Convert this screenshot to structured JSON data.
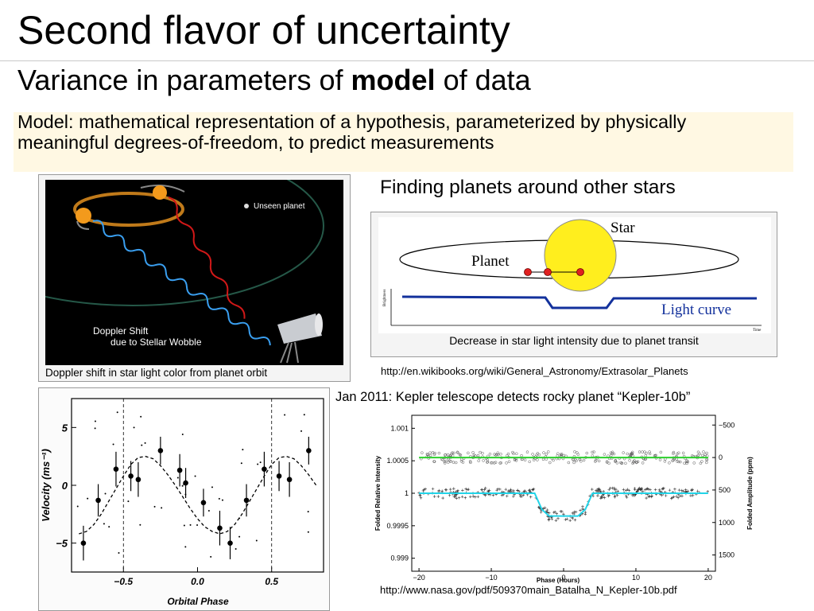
{
  "slide": {
    "title": "Second flavor of uncertainty",
    "subtitle": {
      "before": "Variance in parameters of ",
      "bold": "model",
      "after": " of data"
    },
    "definition": "Model: mathematical representation of a hypothesis, parameterized by physically meaningful degrees-of-freedom, to predict measurements"
  },
  "doppler_figure": {
    "unseen_planet_label": "Unseen planet",
    "doppler_line1": "Doppler Shift",
    "doppler_line2": "due to Stellar Wobble",
    "caption": "Doppler shift in star light color from planet orbit"
  },
  "transit_figure": {
    "heading": "Finding planets around other stars",
    "star_label": "Star",
    "planet_label": "Planet",
    "light_curve_label": "Light curve",
    "y_axis_label": "Brightness",
    "x_axis_label": "Time",
    "caption": "Decrease in star light intensity due to planet transit",
    "source_url": "http://en.wikibooks.org/wiki/General_Astronomy/Extrasolar_Planets"
  },
  "kepler_figure": {
    "heading": "Jan 2011: Kepler telescope detects rocky planet “Kepler-10b”",
    "source_url": "http://www.nasa.gov/pdf/509370main_Batalha_N_Kepler-10b.pdf"
  },
  "chart_data": [
    {
      "type": "scatter",
      "xlabel": "Orbital Phase",
      "ylabel": "Velocity (ms⁻¹)",
      "xlim": [
        -0.85,
        0.85
      ],
      "ylim": [
        -7.5,
        7.5
      ],
      "x_ticks": [
        "−0.5",
        "0.0",
        "0.5"
      ],
      "y_ticks": [
        "5",
        "0",
        "−5"
      ],
      "reference_lines_x": [
        -0.5,
        0.5
      ],
      "series": [
        {
          "marker": "dot-with-errorbar",
          "x": [
            -0.77,
            -0.67,
            -0.55,
            -0.45,
            -0.4,
            -0.25,
            -0.12,
            -0.08,
            0.04,
            0.15,
            0.22,
            0.33,
            0.45,
            0.55,
            0.62,
            0.75
          ],
          "y": [
            -5.0,
            -1.3,
            1.4,
            0.8,
            0.5,
            3.0,
            1.3,
            0.2,
            -1.5,
            -3.7,
            -5.0,
            -1.3,
            1.4,
            0.8,
            0.5,
            3.0
          ],
          "err": [
            1.5,
            1.4,
            1.5,
            1.3,
            1.5,
            1.2,
            1.4,
            1.3,
            1.2,
            1.5,
            1.4,
            1.4,
            1.5,
            1.3,
            1.5,
            1.2
          ]
        },
        {
          "marker": "dashed-line",
          "x": [
            -0.8,
            -0.75,
            -0.7,
            -0.65,
            -0.6,
            -0.55,
            -0.5,
            -0.45,
            -0.4,
            -0.35,
            -0.3,
            -0.25,
            -0.2,
            -0.15,
            -0.1,
            -0.05,
            0.0,
            0.05,
            0.1,
            0.15,
            0.2,
            0.25,
            0.3,
            0.35,
            0.4,
            0.45,
            0.5,
            0.55,
            0.6,
            0.65,
            0.7,
            0.75,
            0.8
          ],
          "y": [
            -4.2,
            -4.0,
            -3.4,
            -2.5,
            -1.4,
            -0.3,
            0.8,
            1.8,
            2.4,
            2.5,
            2.3,
            1.7,
            0.9,
            0.0,
            -1.0,
            -2.0,
            -2.9,
            -3.6,
            -4.0,
            -4.2,
            -4.0,
            -3.4,
            -2.5,
            -1.4,
            -0.3,
            0.8,
            1.8,
            2.4,
            2.5,
            2.3,
            1.7,
            0.9,
            0.0
          ]
        }
      ]
    },
    {
      "type": "scatter",
      "xlabel": "Phase (Hours)",
      "ylabel": "Folded Relative Intensity",
      "ylabel_right": "Folded Amplitude (ppm)",
      "xlim": [
        -21,
        21
      ],
      "ylim": [
        0.9988,
        1.0012
      ],
      "x_ticks": [
        "−20",
        "−10",
        "0",
        "10",
        "20"
      ],
      "y_ticks": [
        "1.001",
        "1.0005",
        "1",
        "0.9995",
        "0.999"
      ],
      "y_ticks_right": [
        "−500",
        "0",
        "500",
        "1000",
        "1500"
      ],
      "series": [
        {
          "name": "upper-points",
          "marker": "open-circle",
          "baseline": 1.00055
        },
        {
          "name": "upper-fit",
          "marker": "green-line",
          "y": 1.00055
        },
        {
          "name": "lower-points",
          "marker": "plus",
          "baseline": 1.0
        },
        {
          "name": "transit-model",
          "marker": "cyan-line",
          "x": [
            -20,
            -4,
            -3,
            -2,
            2,
            3,
            4,
            20
          ],
          "y": [
            1.0,
            1.0,
            0.99975,
            0.99965,
            0.99965,
            0.99975,
            1.0,
            1.0
          ]
        }
      ]
    }
  ]
}
